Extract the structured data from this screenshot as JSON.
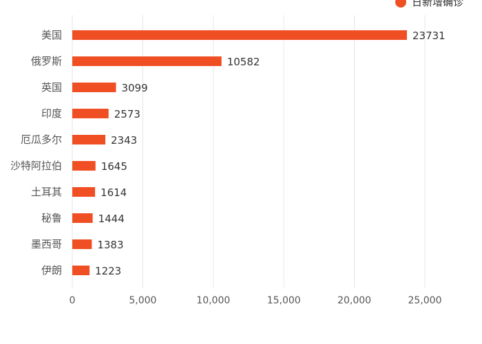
{
  "chart_data": {
    "type": "bar",
    "orientation": "horizontal",
    "categories": [
      "美国",
      "俄罗斯",
      "英国",
      "印度",
      "厄瓜多尔",
      "沙特阿拉伯",
      "土耳其",
      "秘鲁",
      "墨西哥",
      "伊朗"
    ],
    "series": [
      {
        "name": "日新增确诊",
        "values": [
          23731,
          10582,
          3099,
          2573,
          2343,
          1645,
          1614,
          1444,
          1383,
          1223
        ],
        "color": "#f04e23"
      }
    ],
    "xlim": [
      0,
      25000
    ],
    "xticks": [
      "0",
      "5,000",
      "10,000",
      "15,000",
      "20,000",
      "25,000"
    ],
    "grid": "vertical",
    "legend_position": "top-right",
    "data_labels": true
  }
}
